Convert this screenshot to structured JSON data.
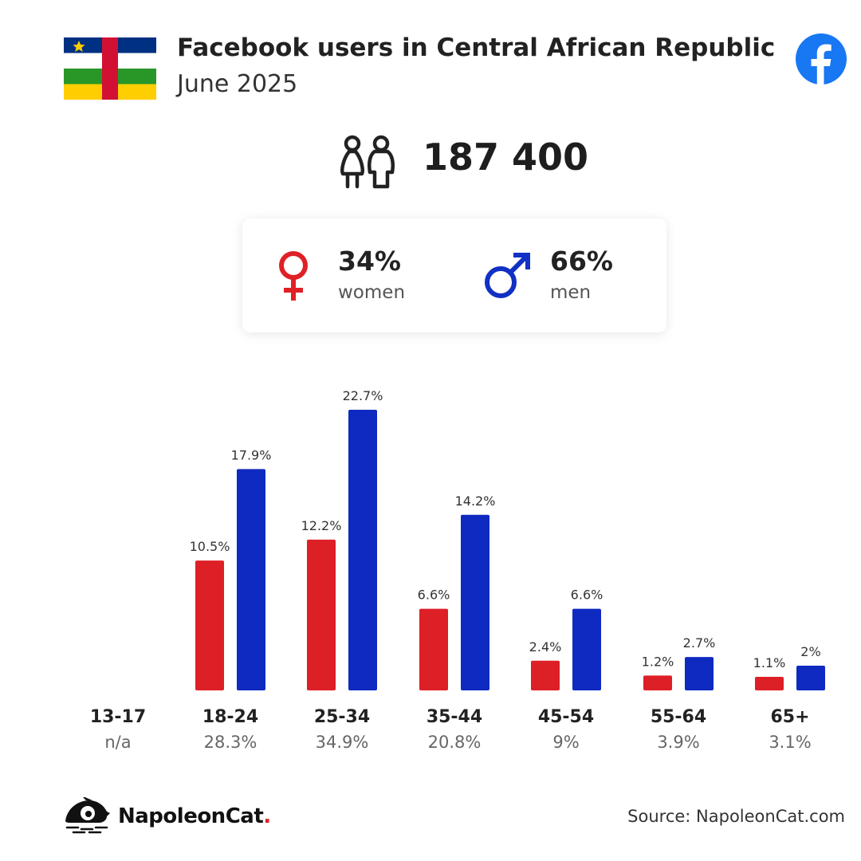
{
  "header": {
    "title": "Facebook users in Central African Republic",
    "subtitle": "June 2025",
    "flag_icon": "central-african-republic-flag",
    "brand_icon": "facebook-logo"
  },
  "summary": {
    "total_users": "187 400",
    "icon": "users-icon"
  },
  "gender": {
    "female": {
      "value": "34%",
      "label": "women",
      "color": "#e02027",
      "icon": "female-icon"
    },
    "male": {
      "value": "66%",
      "label": "men",
      "color": "#1130c4",
      "icon": "male-icon"
    }
  },
  "colors": {
    "women": "#dd1f26",
    "men": "#0f2ac0",
    "facebook": "#1877f2"
  },
  "chart_data": {
    "type": "bar",
    "categories": [
      "13-17",
      "18-24",
      "25-34",
      "35-44",
      "45-54",
      "55-64",
      "65+"
    ],
    "category_totals": [
      "n/a",
      "28.3%",
      "34.9%",
      "20.8%",
      "9%",
      "3.9%",
      "3.1%"
    ],
    "series": [
      {
        "name": "women",
        "values": [
          null,
          10.5,
          12.2,
          6.6,
          2.4,
          1.2,
          1.1
        ],
        "labels": [
          "",
          "10.5%",
          "12.2%",
          "6.6%",
          "2.4%",
          "1.2%",
          "1.1%"
        ]
      },
      {
        "name": "men",
        "values": [
          null,
          17.9,
          22.7,
          14.2,
          6.6,
          2.7,
          2
        ],
        "labels": [
          "",
          "17.9%",
          "22.7%",
          "14.2%",
          "6.6%",
          "2.7%",
          "2%"
        ]
      }
    ],
    "ylim": [
      0,
      22.7
    ],
    "grid": false
  },
  "footer": {
    "brand_name": "NapoleonCat",
    "brand_dot": ".",
    "source": "Source: NapoleonCat.com"
  }
}
